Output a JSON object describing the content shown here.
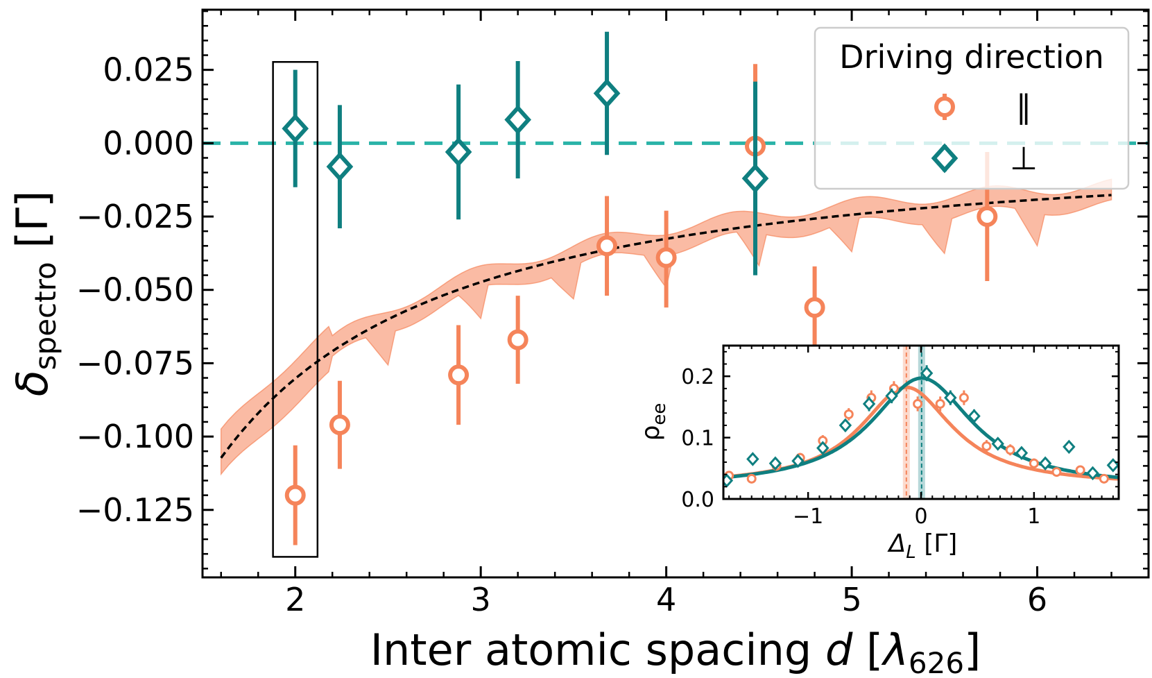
{
  "chart_data": [
    {
      "type": "scatter",
      "name": "main",
      "xlabel": {
        "prefix": "Inter atomic spacing ",
        "var": "d",
        "unit_prefix": " [",
        "unit_var": "λ",
        "unit_sub": "626",
        "unit_suffix": "]"
      },
      "ylabel": {
        "var": "δ",
        "sub": "spectro",
        "unit": " [Γ]"
      },
      "xlim": [
        1.5,
        6.6
      ],
      "ylim": [
        -0.148,
        0.0455
      ],
      "xticks": [
        2,
        3,
        4,
        5,
        6
      ],
      "xtick_labels": [
        "2",
        "3",
        "4",
        "5",
        "6"
      ],
      "yticks": [
        0.025,
        0.0,
        -0.025,
        -0.05,
        -0.075,
        -0.1,
        -0.125
      ],
      "ytick_labels": [
        "0.025",
        "0.000",
        "−0.025",
        "−0.050",
        "−0.075",
        "−0.100",
        "−0.125"
      ],
      "legend": {
        "title": "Driving direction",
        "location": "upper right",
        "entries": [
          "∥",
          "⊥"
        ]
      },
      "reference_line": {
        "y": 0.0,
        "style": "dashed",
        "color": "#2ab3a8"
      },
      "highlight_box": {
        "x": [
          1.88,
          2.12
        ],
        "y": [
          -0.141,
          0.0277
        ]
      },
      "series": [
        {
          "name": "∥",
          "marker": "circle",
          "color": "#f5845a",
          "x": [
            2.0,
            2.24,
            2.88,
            3.2,
            3.68,
            4.0,
            4.48,
            4.8,
            5.73
          ],
          "y": [
            -0.12,
            -0.096,
            -0.079,
            -0.067,
            -0.035,
            -0.039,
            -0.001,
            -0.056,
            -0.025
          ],
          "yerr_low": [
            0.017,
            0.015,
            0.017,
            0.015,
            0.017,
            0.017,
            0.028,
            0.014,
            0.022
          ],
          "yerr_high": [
            0.017,
            0.015,
            0.017,
            0.015,
            0.017,
            0.016,
            0.028,
            0.014,
            0.022
          ]
        },
        {
          "name": "⊥",
          "marker": "diamond",
          "color": "#0f7f80",
          "x": [
            2.0,
            2.24,
            2.88,
            3.2,
            3.68,
            4.48
          ],
          "y": [
            0.005,
            -0.008,
            -0.003,
            0.008,
            0.017,
            -0.012
          ],
          "yerr_low": [
            0.02,
            0.021,
            0.023,
            0.02,
            0.021,
            0.033
          ],
          "yerr_high": [
            0.02,
            0.021,
            0.023,
            0.02,
            0.021,
            0.033
          ]
        }
      ],
      "fit_curve": {
        "style": "dashed",
        "color": "#000000",
        "A": 0.1976,
        "p": 1.3
      },
      "theory_band": {
        "color": "#f5845a",
        "x_range": [
          1.6,
          6.4
        ],
        "width": 0.0035
      }
    },
    {
      "type": "scatter",
      "name": "inset",
      "xlabel": {
        "var": "Δ",
        "sub": "L",
        "unit": " [Γ]"
      },
      "ylabel": {
        "var": "ρ",
        "sub": "ee"
      },
      "xlim": [
        -1.75,
        1.75
      ],
      "ylim": [
        0.0,
        0.25
      ],
      "xticks": [
        -1,
        0,
        1
      ],
      "xtick_labels": [
        "−1",
        "0",
        "1"
      ],
      "yticks": [
        0.0,
        0.1,
        0.2
      ],
      "ytick_labels": [
        "0.0",
        "0.1",
        "0.2"
      ],
      "vertical_markers": [
        {
          "x": -0.13,
          "color": "#f5845a"
        },
        {
          "x": 0.005,
          "color": "#0f7f80"
        }
      ],
      "series": [
        {
          "name": "∥",
          "marker": "circle",
          "color": "#f5845a",
          "x": [
            -1.7,
            -1.5,
            -1.28,
            -1.07,
            -0.87,
            -0.64,
            -0.44,
            -0.24,
            -0.03,
            0.17,
            0.38,
            0.58,
            0.79,
            1.0,
            1.2,
            1.41,
            1.62
          ],
          "y": [
            0.038,
            0.033,
            0.054,
            0.067,
            0.095,
            0.138,
            0.165,
            0.18,
            0.155,
            0.155,
            0.165,
            0.086,
            0.08,
            0.058,
            0.044,
            0.047,
            0.033
          ],
          "yerr": [
            0.007,
            0.007,
            0.008,
            0.008,
            0.009,
            0.01,
            0.012,
            0.012,
            0.012,
            0.012,
            0.012,
            0.01,
            0.009,
            0.008,
            0.007,
            0.007,
            0.007
          ],
          "fit": {
            "amplitude": 0.16,
            "center": -0.13,
            "hwhm": 0.5,
            "offset": 0.022
          }
        },
        {
          "name": "⊥",
          "marker": "diamond",
          "color": "#0f7f80",
          "x": [
            -1.72,
            -1.49,
            -1.29,
            -1.09,
            -0.87,
            -0.67,
            -0.46,
            -0.26,
            0.05,
            0.26,
            0.47,
            0.68,
            0.89,
            1.1,
            1.31,
            1.52,
            1.7
          ],
          "y": [
            0.03,
            0.065,
            0.058,
            0.062,
            0.083,
            0.12,
            0.155,
            0.168,
            0.205,
            0.165,
            0.135,
            0.09,
            0.075,
            0.058,
            0.085,
            0.042,
            0.055
          ],
          "yerr": [
            0.007,
            0.008,
            0.008,
            0.008,
            0.009,
            0.01,
            0.012,
            0.012,
            0.013,
            0.012,
            0.011,
            0.009,
            0.009,
            0.008,
            0.008,
            0.007,
            0.007
          ],
          "fit": {
            "amplitude": 0.178,
            "center": 0.005,
            "hwhm": 0.55,
            "offset": 0.019
          }
        }
      ]
    }
  ]
}
